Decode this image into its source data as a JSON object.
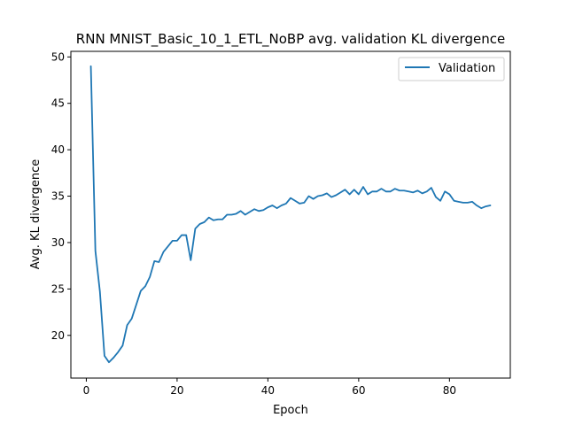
{
  "chart_data": {
    "type": "line",
    "title": "RNN MNIST_Basic_10_1_ETL_NoBP avg. validation KL divergence",
    "xlabel": "Epoch",
    "ylabel": "Avg. KL divergence",
    "xlim": [
      -3.4,
      93.4
    ],
    "ylim": [
      15.4,
      50.6
    ],
    "x_ticks": [
      0,
      20,
      40,
      60,
      80
    ],
    "y_ticks": [
      20,
      25,
      30,
      35,
      40,
      45,
      50
    ],
    "grid": false,
    "legend_position": "top-right",
    "series": [
      {
        "name": "Validation",
        "color": "#1f77b4",
        "x": [
          1,
          2,
          3,
          4,
          5,
          6,
          7,
          8,
          9,
          10,
          11,
          12,
          13,
          14,
          15,
          16,
          17,
          18,
          19,
          20,
          21,
          22,
          23,
          24,
          25,
          26,
          27,
          28,
          29,
          30,
          31,
          32,
          33,
          34,
          35,
          36,
          37,
          38,
          39,
          40,
          41,
          42,
          43,
          44,
          45,
          46,
          47,
          48,
          49,
          50,
          51,
          52,
          53,
          54,
          55,
          56,
          57,
          58,
          59,
          60,
          61,
          62,
          63,
          64,
          65,
          66,
          67,
          68,
          69,
          70,
          71,
          72,
          73,
          74,
          75,
          76,
          77,
          78,
          79,
          80,
          81,
          82,
          83,
          84,
          85,
          86,
          87,
          88,
          89
        ],
        "values": [
          49.0,
          29.1,
          24.7,
          17.8,
          17.1,
          17.6,
          18.2,
          18.9,
          21.1,
          21.8,
          23.3,
          24.8,
          25.3,
          26.3,
          28.0,
          27.9,
          29.0,
          29.6,
          30.2,
          30.2,
          30.8,
          30.8,
          28.1,
          31.5,
          32.0,
          32.2,
          32.7,
          32.4,
          32.5,
          32.5,
          33.0,
          33.0,
          33.1,
          33.4,
          33.0,
          33.3,
          33.6,
          33.4,
          33.5,
          33.8,
          34.0,
          33.7,
          34.0,
          34.2,
          34.8,
          34.5,
          34.2,
          34.3,
          35.0,
          34.7,
          35.0,
          35.1,
          35.3,
          34.9,
          35.1,
          35.4,
          35.7,
          35.2,
          35.7,
          35.2,
          36.0,
          35.2,
          35.5,
          35.5,
          35.8,
          35.5,
          35.5,
          35.8,
          35.6,
          35.6,
          35.5,
          35.4,
          35.6,
          35.3,
          35.5,
          35.9,
          34.9,
          34.5,
          35.5,
          35.2,
          34.5,
          34.4,
          34.3,
          34.3,
          34.4,
          34.0,
          33.7,
          33.9,
          34.0
        ]
      }
    ]
  }
}
